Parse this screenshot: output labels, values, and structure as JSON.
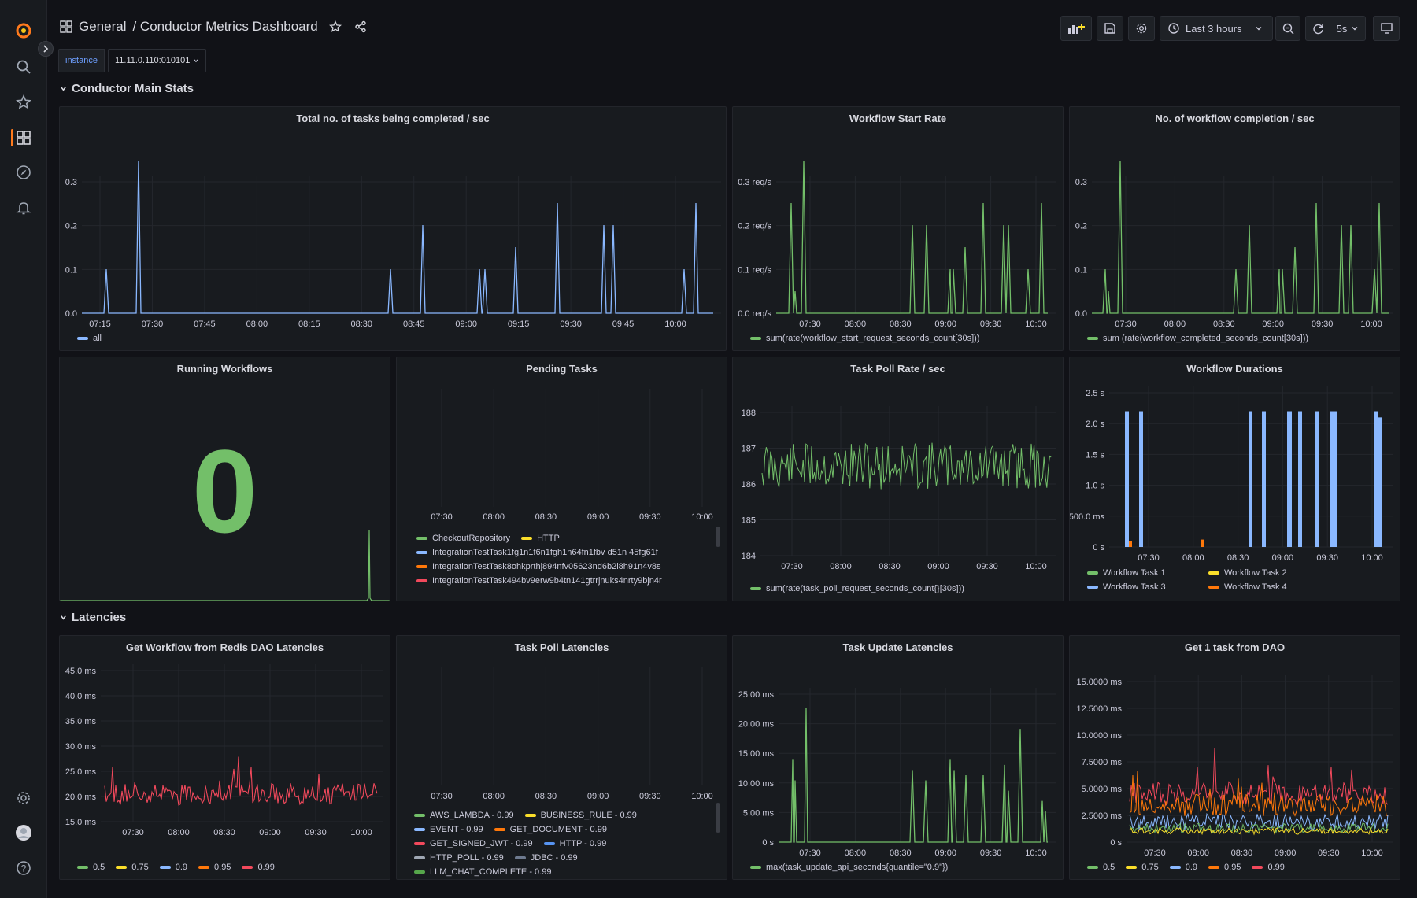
{
  "breadcrumb": {
    "folder": "General",
    "title": "/ Conductor Metrics Dashboard"
  },
  "toolbar": {
    "time_range": "Last 3 hours",
    "refresh_interval": "5s"
  },
  "variable": {
    "label": "instance",
    "value": "11.11.0.110:010101"
  },
  "rows": {
    "main": "Conductor Main Stats",
    "latencies": "Latencies"
  },
  "colors": {
    "green": "#73bf69",
    "blue": "#8ab8ff",
    "yellow": "#fade2a",
    "orange": "#ff780a",
    "red": "#f2495c",
    "grey": "#9fa7b3"
  },
  "panels": {
    "tasks_completed": {
      "title": "Total no. of tasks being completed / sec",
      "legend": [
        {
          "label": "all",
          "color": "#8ab8ff"
        }
      ]
    },
    "workflow_start": {
      "title": "Workflow Start Rate",
      "legend": [
        {
          "label": "sum(rate(workflow_start_request_seconds_count[30s]))",
          "color": "#73bf69"
        }
      ]
    },
    "workflow_completion": {
      "title": "No. of workflow completion / sec",
      "legend": [
        {
          "label": "sum (rate(workflow_completed_seconds_count[30s]))",
          "color": "#73bf69"
        }
      ]
    },
    "running_workflows": {
      "title": "Running Workflows",
      "value": "0"
    },
    "pending_tasks": {
      "title": "Pending Tasks",
      "legend": [
        {
          "label": "CheckoutRepository",
          "color": "#73bf69"
        },
        {
          "label": "HTTP",
          "color": "#fade2a"
        },
        {
          "label": "IntegrationTestTask1fg1n1f6n1fgh1n64fn1fbv d51n 45fg61f",
          "color": "#8ab8ff"
        },
        {
          "label": "IntegrationTestTask8ohkprthj894nfv05623nd6b2i8h91n4v8s",
          "color": "#ff780a"
        },
        {
          "label": "IntegrationTestTask494bv9erw9b4tn141gtrrjnuks4nrty9bjn4r",
          "color": "#f2495c"
        }
      ]
    },
    "task_poll_rate": {
      "title": "Task Poll Rate / sec",
      "legend": [
        {
          "label": "sum(rate(task_poll_request_seconds_count{}[30s]))",
          "color": "#73bf69"
        }
      ]
    },
    "workflow_durations": {
      "title": "Workflow Durations",
      "legend": [
        {
          "label": "Workflow Task 1",
          "color": "#73bf69"
        },
        {
          "label": "Workflow Task 2",
          "color": "#fade2a"
        },
        {
          "label": "Workflow Task 3",
          "color": "#8ab8ff"
        },
        {
          "label": "Workflow Task 4",
          "color": "#ff780a"
        }
      ]
    },
    "redis_latencies": {
      "title": "Get Workflow from Redis DAO Latencies",
      "legend": [
        {
          "label": "0.5",
          "color": "#73bf69"
        },
        {
          "label": "0.75",
          "color": "#fade2a"
        },
        {
          "label": "0.9",
          "color": "#8ab8ff"
        },
        {
          "label": "0.95",
          "color": "#ff780a"
        },
        {
          "label": "0.99",
          "color": "#f2495c"
        }
      ]
    },
    "task_poll_latencies": {
      "title": "Task Poll Latencies",
      "legend": [
        {
          "label": "AWS_LAMBDA - 0.99",
          "color": "#73bf69"
        },
        {
          "label": "BUSINESS_RULE - 0.99",
          "color": "#fade2a"
        },
        {
          "label": "EVENT - 0.99",
          "color": "#8ab8ff"
        },
        {
          "label": "GET_DOCUMENT - 0.99",
          "color": "#ff780a"
        },
        {
          "label": "GET_SIGNED_JWT - 0.99",
          "color": "#f2495c"
        },
        {
          "label": "HTTP - 0.99",
          "color": "#5794f2"
        },
        {
          "label": "HTTP_POLL - 0.99",
          "color": "#9fa7b3"
        },
        {
          "label": "JDBC - 0.99",
          "color": "#6e7a8f"
        },
        {
          "label": "LLM_CHAT_COMPLETE - 0.99",
          "color": "#56a64b"
        }
      ]
    },
    "task_update_latencies": {
      "title": "Task Update Latencies",
      "legend": [
        {
          "label": "max(task_update_api_seconds{quantile=\"0.9\"})",
          "color": "#73bf69"
        }
      ]
    },
    "get_task_dao": {
      "title": "Get 1 task from DAO",
      "legend": [
        {
          "label": "0.5",
          "color": "#73bf69"
        },
        {
          "label": "0.75",
          "color": "#fade2a"
        },
        {
          "label": "0.9",
          "color": "#8ab8ff"
        },
        {
          "label": "0.95",
          "color": "#ff780a"
        },
        {
          "label": "0.99",
          "color": "#f2495c"
        }
      ]
    }
  },
  "axes": {
    "t_full": [
      "07:15",
      "07:30",
      "07:45",
      "08:00",
      "08:15",
      "08:30",
      "08:45",
      "09:00",
      "09:15",
      "09:30",
      "09:45",
      "10:00"
    ],
    "t_half": [
      "07:30",
      "08:00",
      "08:30",
      "09:00",
      "09:30",
      "10:00"
    ],
    "y_rate": [
      "0.3",
      "0.2",
      "0.1",
      "0.0"
    ],
    "y_req": [
      "0.3 req/s",
      "0.2 req/s",
      "0.1 req/s",
      "0.0 req/s"
    ],
    "y_poll": [
      "188",
      "187",
      "186",
      "185",
      "184"
    ],
    "y_dur": [
      "2.5 s",
      "2.0 s",
      "1.5 s",
      "1.0 s",
      "500.0 ms",
      "0 s"
    ],
    "y_redis": [
      "45.0 ms",
      "40.0 ms",
      "35.0 ms",
      "30.0 ms",
      "25.0 ms",
      "20.0 ms",
      "15.0 ms"
    ],
    "y_update": [
      "25.00 ms",
      "20.00 ms",
      "15.00 ms",
      "10.00 ms",
      "5.00 ms",
      "0 s"
    ],
    "y_dao": [
      "15.0000 ms",
      "12.5000 ms",
      "10.0000 ms",
      "7.5000 ms",
      "5.0000 ms",
      "2.5000 ms",
      "0 s"
    ]
  }
}
